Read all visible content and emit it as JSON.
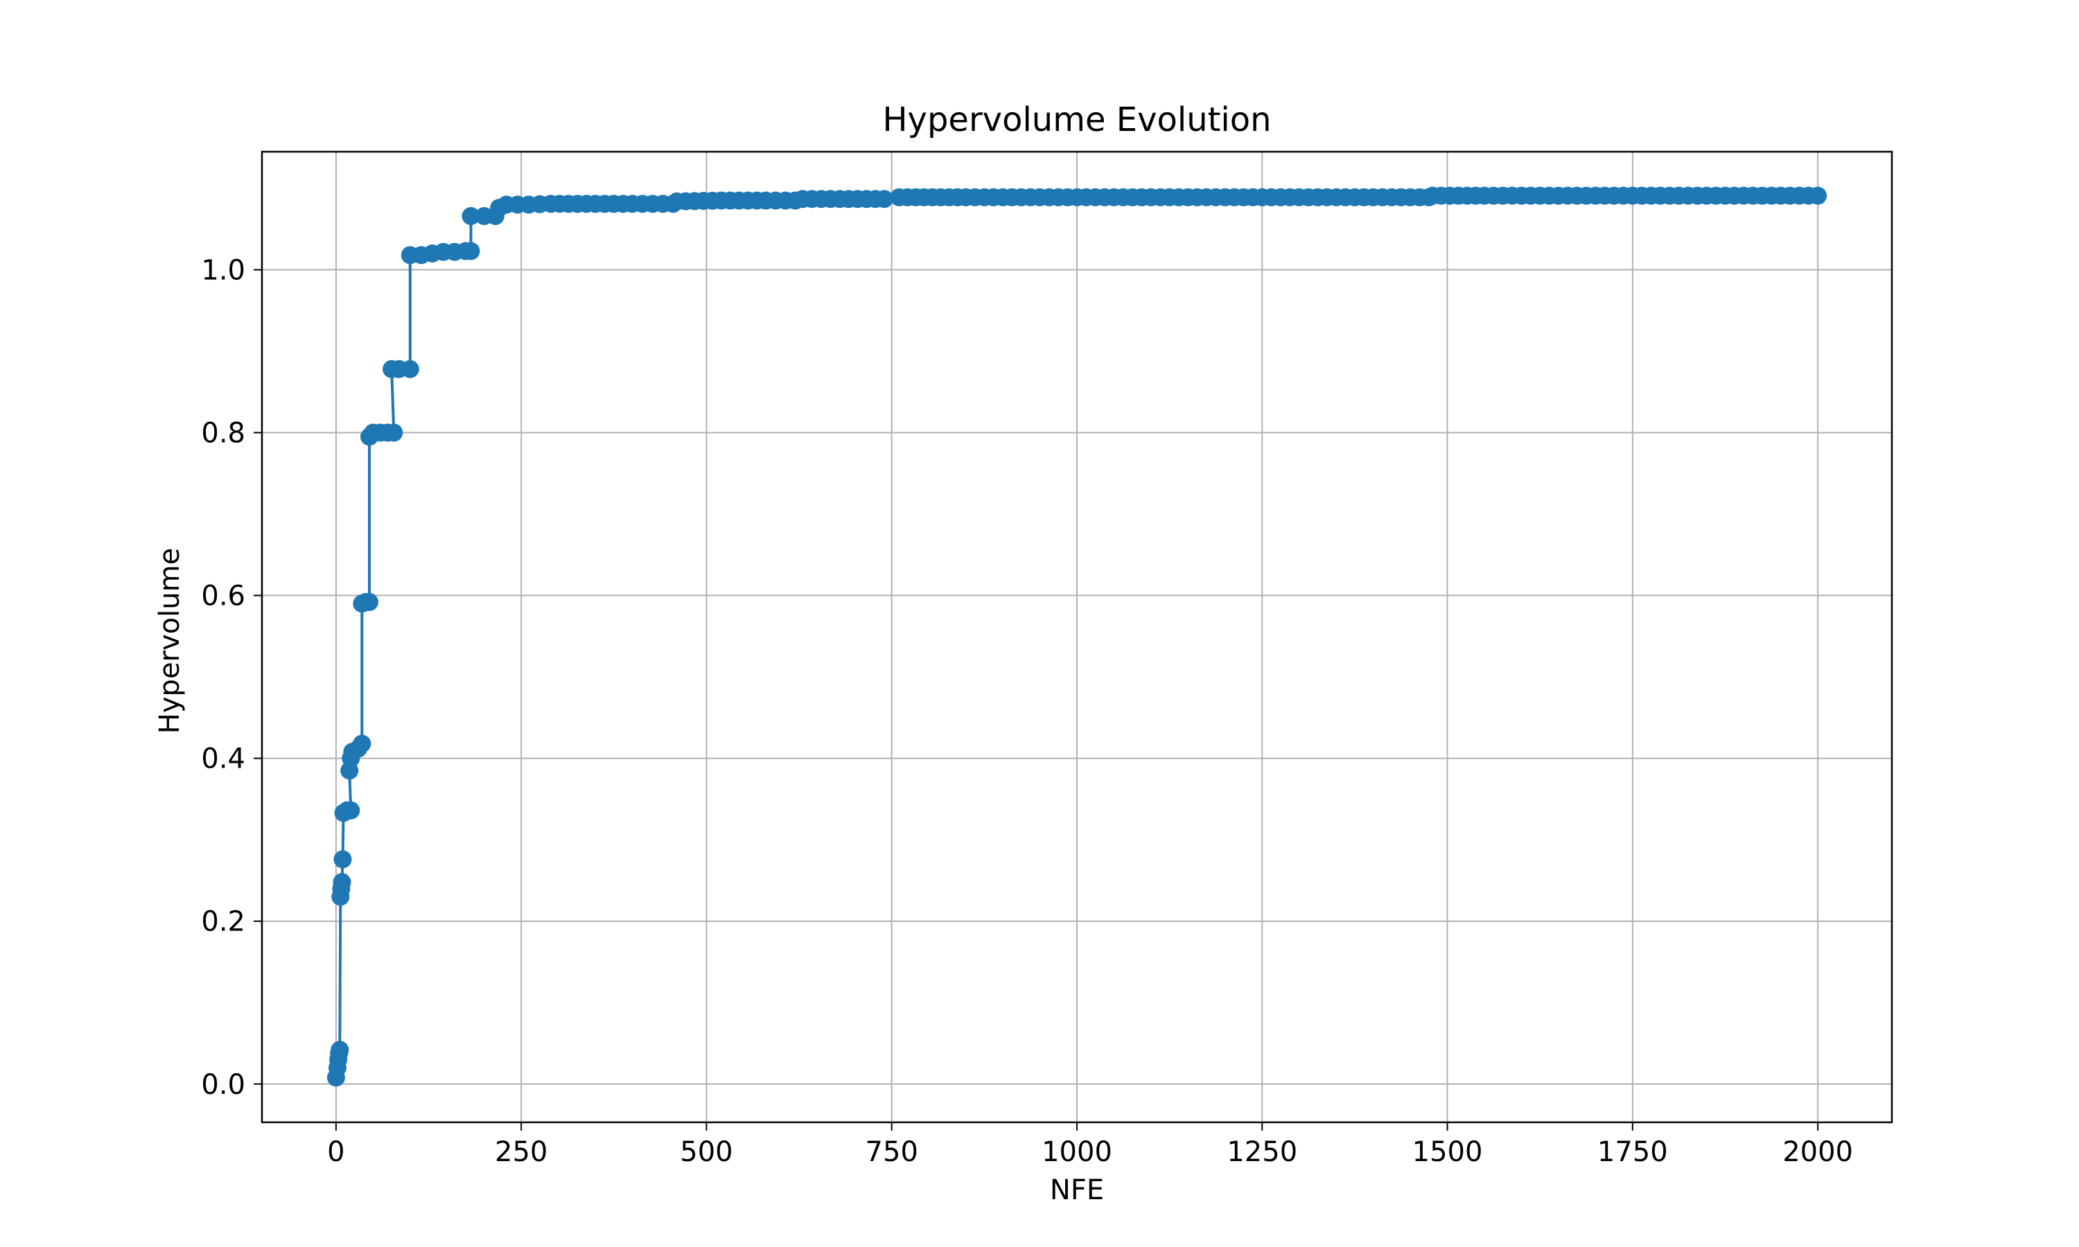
{
  "chart_data": {
    "type": "line",
    "title": "Hypervolume Evolution",
    "xlabel": "NFE",
    "ylabel": "Hypervolume",
    "xlim": [
      -100,
      2100
    ],
    "ylim": [
      -0.047,
      1.145
    ],
    "xticks": [
      0,
      250,
      500,
      750,
      1000,
      1250,
      1500,
      1750,
      2000
    ],
    "yticks": [
      0.0,
      0.2,
      0.4,
      0.6,
      0.8,
      1.0
    ],
    "xtick_labels": [
      "0",
      "250",
      "500",
      "750",
      "1000",
      "1250",
      "1500",
      "1750",
      "2000"
    ],
    "ytick_labels": [
      "0.0",
      "0.2",
      "0.4",
      "0.6",
      "0.8",
      "1.0"
    ],
    "grid": true,
    "marker": "o",
    "color": "#1f77b4",
    "series": [
      {
        "points": [
          [
            0,
            0.008
          ],
          [
            2,
            0.02
          ],
          [
            3,
            0.03
          ],
          [
            4,
            0.038
          ],
          [
            5,
            0.042
          ],
          [
            6,
            0.23
          ],
          [
            7,
            0.24
          ],
          [
            8,
            0.248
          ],
          [
            9,
            0.276
          ],
          [
            10,
            0.333
          ],
          [
            15,
            0.336
          ],
          [
            20,
            0.336
          ],
          [
            18,
            0.385
          ],
          [
            20,
            0.4
          ],
          [
            22,
            0.408
          ],
          [
            30,
            0.412
          ],
          [
            35,
            0.418
          ],
          [
            35,
            0.59
          ],
          [
            40,
            0.592
          ],
          [
            45,
            0.592
          ],
          [
            45,
            0.795
          ],
          [
            50,
            0.8
          ],
          [
            60,
            0.8
          ],
          [
            70,
            0.8
          ],
          [
            78,
            0.8
          ],
          [
            75,
            0.878
          ],
          [
            85,
            0.878
          ],
          [
            100,
            0.878
          ],
          [
            100,
            1.018
          ],
          [
            115,
            1.018
          ],
          [
            130,
            1.02
          ],
          [
            145,
            1.022
          ],
          [
            160,
            1.022
          ],
          [
            175,
            1.023
          ],
          [
            182,
            1.023
          ],
          [
            182,
            1.066
          ],
          [
            200,
            1.066
          ],
          [
            215,
            1.066
          ],
          [
            220,
            1.076
          ],
          [
            230,
            1.08
          ],
          [
            260,
            1.08
          ],
          [
            290,
            1.081
          ],
          [
            350,
            1.081
          ],
          [
            400,
            1.081
          ],
          [
            455,
            1.081
          ],
          [
            460,
            1.084
          ],
          [
            520,
            1.085
          ],
          [
            580,
            1.085
          ],
          [
            620,
            1.085
          ],
          [
            630,
            1.087
          ],
          [
            680,
            1.087
          ],
          [
            740,
            1.087
          ],
          [
            760,
            1.089
          ],
          [
            850,
            1.089
          ],
          [
            950,
            1.089
          ],
          [
            1050,
            1.089
          ],
          [
            1150,
            1.089
          ],
          [
            1250,
            1.089
          ],
          [
            1350,
            1.089
          ],
          [
            1450,
            1.089
          ],
          [
            1475,
            1.089
          ],
          [
            1480,
            1.091
          ],
          [
            1550,
            1.091
          ],
          [
            1650,
            1.091
          ],
          [
            1750,
            1.091
          ],
          [
            1850,
            1.091
          ],
          [
            1950,
            1.091
          ],
          [
            2000,
            1.091
          ]
        ]
      }
    ]
  }
}
